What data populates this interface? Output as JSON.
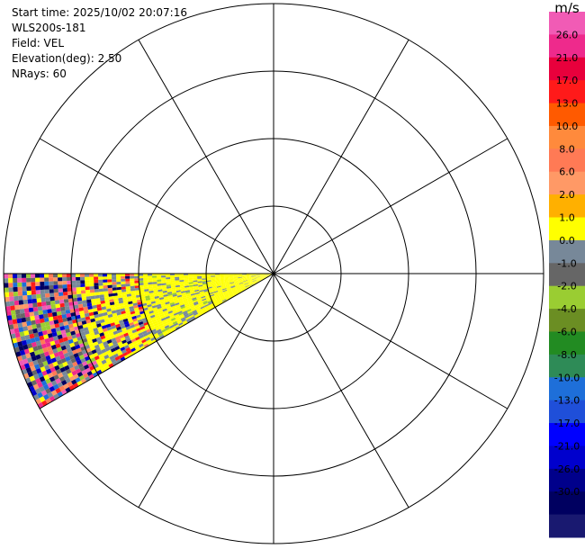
{
  "header": {
    "start_time": "Start time: 2025/10/02 20:07:16",
    "instrument": "WLS200s-181",
    "field": "Field: VEL",
    "elevation": "Elevation(deg): 2.50",
    "nrays": "NRays: 60"
  },
  "colorbar": {
    "unit": "m/s",
    "ticks": [
      "26.0",
      "21.0",
      "17.0",
      "13.0",
      "10.0",
      "8.0",
      "6.0",
      "2.0",
      "1.0",
      "0.0",
      "-1.0",
      "-2.0",
      "-4.0",
      "-6.0",
      "-8.0",
      "-10.0",
      "-13.0",
      "-17.0",
      "-21.0",
      "-26.0",
      "-30.0"
    ],
    "colors": [
      "#f15bb5",
      "#ee2a8c",
      "#e8003c",
      "#ff1a1a",
      "#ff5a00",
      "#ff8a3c",
      "#ff7a55",
      "#ff9966",
      "#ffb000",
      "#ffff00",
      "#778899",
      "#666666",
      "#9acd32",
      "#6b8e23",
      "#228b22",
      "#2e8b57",
      "#1e6fd9",
      "#1f4fd9",
      "#0000ff",
      "#0000cd",
      "#00008b",
      "#000060",
      "#191970"
    ]
  },
  "chart_data": {
    "type": "heatmap",
    "subtype": "polar PPI radial velocity scan",
    "field": "VEL",
    "elevation_deg": 2.5,
    "n_rays": 60,
    "sector_azimuth_deg": [
      240,
      270
    ],
    "range_rings": 4,
    "spoke_step_deg": 30,
    "value_range": [
      -30,
      26
    ],
    "unit": "m/s"
  }
}
